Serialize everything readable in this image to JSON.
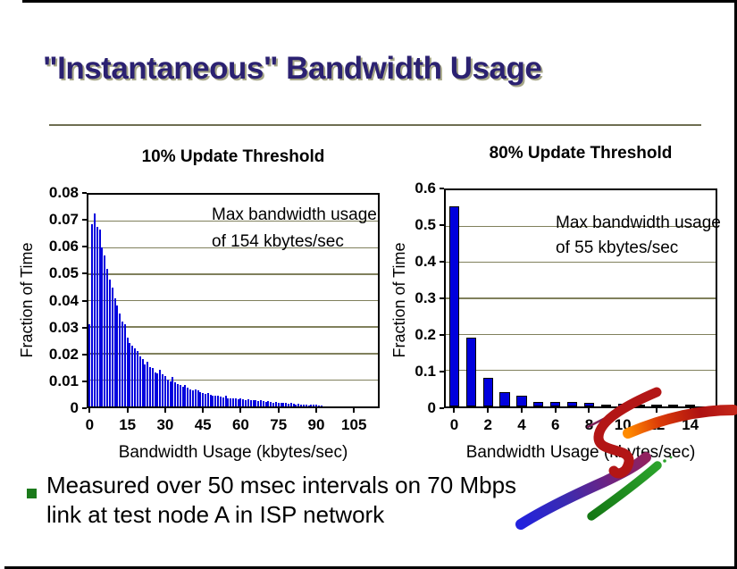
{
  "slide": {
    "title": "\"Instantaneous\" Bandwidth Usage",
    "bullet_lines": [
      "Measured over 50 msec intervals on 70 Mbps",
      "link at test node A in ISP network"
    ]
  },
  "colors": {
    "title_navy": "#2B2171",
    "title_shadow": "#A6A687",
    "rule_olive": "#6E6E52",
    "gridline_olive": "#80805C",
    "bar_blue": "#0000DD",
    "bullet_green": "#1B7A1B",
    "swoosh_red": "#B31616",
    "swoosh_orange": "#FF8A00",
    "swoosh_purple": "#7E2058",
    "swoosh_blue": "#2222DE",
    "swoosh_green": "#1E9320"
  },
  "chart_data": [
    {
      "type": "bar",
      "title": "10% Update Threshold",
      "xlabel": "Bandwidth Usage (kbytes/sec)",
      "ylabel": "Fraction of Time",
      "annotation": [
        "Max bandwidth usage",
        "of 154 kbytes/sec"
      ],
      "ylim": [
        0,
        0.08
      ],
      "yticks": [
        "0.08",
        "0.07",
        "0.06",
        "0.05",
        "0.04",
        "0.03",
        "0.02",
        "0.01",
        "0"
      ],
      "xticks": [
        0,
        15,
        30,
        45,
        60,
        75,
        90,
        105
      ],
      "x_bin_count": 115,
      "grid": true,
      "legend": "none",
      "values": [
        0.031,
        0.069,
        0.073,
        0.068,
        0.067,
        0.06,
        0.057,
        0.052,
        0.048,
        0.045,
        0.041,
        0.038,
        0.035,
        0.032,
        0.031,
        0.026,
        0.024,
        0.023,
        0.022,
        0.021,
        0.019,
        0.018,
        0.016,
        0.017,
        0.015,
        0.0145,
        0.013,
        0.0125,
        0.014,
        0.012,
        0.0115,
        0.01,
        0.0095,
        0.011,
        0.009,
        0.0085,
        0.008,
        0.0075,
        0.008,
        0.007,
        0.0065,
        0.006,
        0.0065,
        0.006,
        0.0055,
        0.005,
        0.0048,
        0.005,
        0.0045,
        0.004,
        0.0042,
        0.004,
        0.0038,
        0.0035,
        0.004,
        0.0032,
        0.003,
        0.0032,
        0.003,
        0.0028,
        0.003,
        0.0026,
        0.0025,
        0.0027,
        0.0024,
        0.0022,
        0.0025,
        0.002,
        0.0022,
        0.002,
        0.0018,
        0.002,
        0.0016,
        0.0015,
        0.0017,
        0.0014,
        0.0012,
        0.0015,
        0.0012,
        0.001,
        0.0012,
        0.001,
        0.0008,
        0.001,
        0.0008,
        0.0006,
        0.0008,
        0.0005,
        0.0006,
        0.0008,
        0.0006,
        0.0005,
        0.0004,
        0,
        0,
        0,
        0,
        0,
        0,
        0,
        0,
        0,
        0,
        0,
        0,
        0,
        0,
        0,
        0,
        0,
        0,
        0,
        0,
        0,
        0
      ]
    },
    {
      "type": "bar",
      "title": "80% Update Threshold",
      "xlabel": "Bandwidth Usage (kbytes/sec)",
      "ylabel": "Fraction of Time",
      "annotation": [
        "Max bandwidth usage",
        "of 55 kbytes/sec"
      ],
      "ylim": [
        0,
        0.6
      ],
      "yticks": [
        "0.6",
        "0.5",
        "0.4",
        "0.3",
        "0.2",
        "0.1",
        "0"
      ],
      "xticks": [
        0,
        2,
        4,
        6,
        8,
        10,
        12,
        14
      ],
      "x_bin_count": 16,
      "grid": true,
      "legend": "none",
      "values": [
        0.555,
        0.19,
        0.08,
        0.04,
        0.03,
        0.012,
        0.012,
        0.012,
        0.01,
        0.003,
        0.007,
        0.002,
        0.003,
        0.001,
        0.002,
        0
      ]
    }
  ]
}
